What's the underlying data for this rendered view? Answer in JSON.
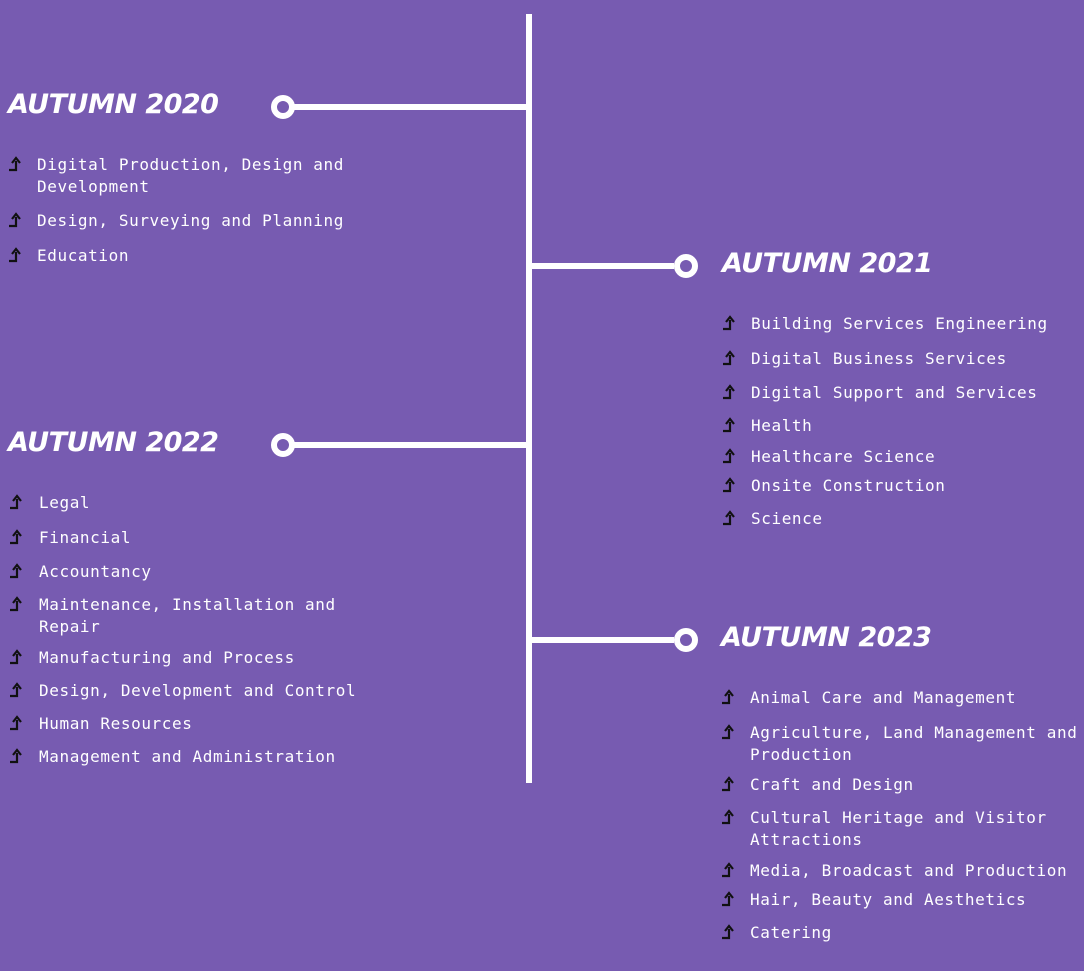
{
  "timeline": [
    {
      "heading": "AUTUMN 2020",
      "items": [
        "Digital Production, Design and Development",
        "Design, Surveying and Planning",
        "Education"
      ]
    },
    {
      "heading": "AUTUMN 2021",
      "items": [
        "Building Services Engineering",
        "Digital Business Services",
        "Digital Support and Services",
        "Health",
        "Healthcare Science",
        "Onsite Construction",
        "Science"
      ]
    },
    {
      "heading": "AUTUMN 2022",
      "items": [
        "Legal",
        "Financial",
        "Accountancy",
        "Maintenance, Installation and Repair",
        "Manufacturing and Process",
        "Design, Development and Control",
        "Human Resources",
        "Management and Administration"
      ]
    },
    {
      "heading": "AUTUMN 2023",
      "items": [
        "Animal Care and Management",
        "Agriculture, Land Management and Production",
        "Craft and Design",
        "Cultural Heritage and Visitor Attractions",
        "Media, Broadcast and Production",
        "Hair, Beauty and Aesthetics",
        "Catering"
      ]
    }
  ],
  "colors": {
    "background": "#775bb1",
    "foreground": "#ffffff",
    "icon": "#111111"
  },
  "icon": "turn-up-arrow-icon"
}
